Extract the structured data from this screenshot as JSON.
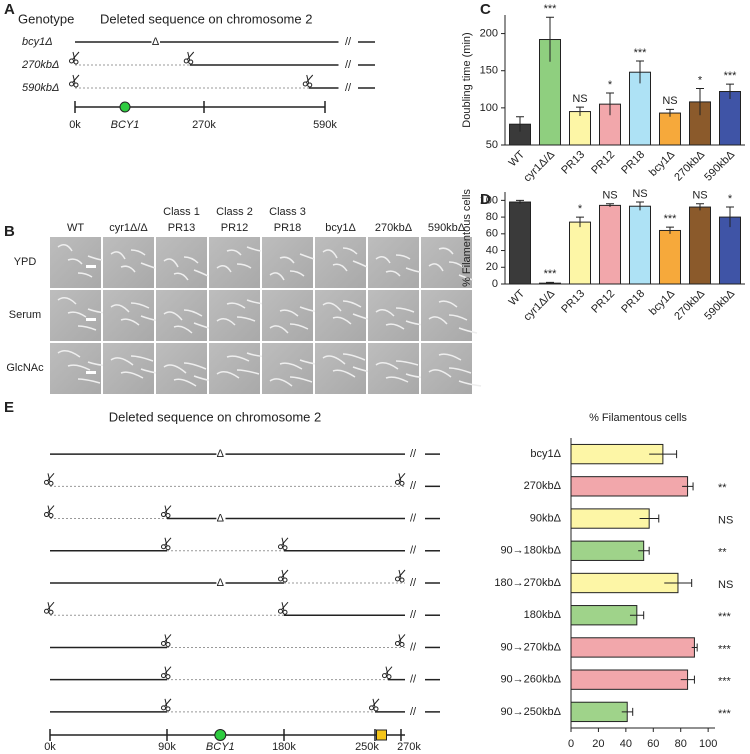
{
  "panel_labels": [
    "A",
    "B",
    "C",
    "D",
    "E"
  ],
  "panel_a": {
    "header_genotype": "Genotype",
    "header_sequence": "Deleted sequence on chromosome 2",
    "rows": [
      "bcy1Δ",
      "270kbΔ",
      "590kbΔ"
    ],
    "axis_labels": [
      "0k",
      "BCY1",
      "270k",
      "590k"
    ],
    "deletion_mark": "Δ",
    "break_mark": "//"
  },
  "panel_b": {
    "columns": [
      {
        "name": "WT"
      },
      {
        "name": "cyr1Δ/Δ"
      },
      {
        "class": "Class 1",
        "name": "PR13"
      },
      {
        "class": "Class 2",
        "name": "PR12"
      },
      {
        "class": "Class 3",
        "name": "PR18"
      },
      {
        "name": "bcy1Δ"
      },
      {
        "name": "270kbΔ"
      },
      {
        "name": "590kbΔ"
      }
    ],
    "rows": [
      "YPD",
      "Serum",
      "GlcNAc"
    ]
  },
  "panel_e": {
    "title": "Deleted sequence on chromosome 2",
    "axis_labels": [
      "0k",
      "90k",
      "BCY1",
      "180k",
      "250k",
      "270k"
    ],
    "deletion_mark": "Δ",
    "break_mark": "//"
  },
  "chart_data": [
    {
      "type": "bar",
      "y_label": "Doubling time (min)",
      "categories": [
        "WT",
        "cyr1Δ/Δ",
        "PR13",
        "PR12",
        "PR18",
        "bcy1Δ",
        "270kbΔ",
        "590kbΔ"
      ],
      "values": [
        78,
        192,
        95,
        105,
        148,
        93,
        108,
        122
      ],
      "errors": [
        10,
        30,
        6,
        15,
        15,
        5,
        18,
        10
      ],
      "colors": [
        "#3a3a3a",
        "#8fcf7f",
        "#fdf6a6",
        "#f2a7ab",
        "#aee2f5",
        "#f6a93b",
        "#8b5a2b",
        "#3f54a6"
      ],
      "annotations": [
        null,
        "***",
        "NS",
        "*",
        "***",
        "NS",
        "*",
        "***"
      ],
      "ylim": [
        50,
        225
      ],
      "yticks": [
        50,
        100,
        150,
        200
      ]
    },
    {
      "type": "bar",
      "y_label": "% Filamentous cells",
      "categories": [
        "WT",
        "cyr1Δ/Δ",
        "PR13",
        "PR12",
        "PR18",
        "bcy1Δ",
        "270kbΔ",
        "590kbΔ"
      ],
      "values": [
        98,
        1,
        74,
        94,
        93,
        64,
        92,
        80
      ],
      "errors": [
        2,
        1,
        6,
        2,
        5,
        4,
        4,
        12
      ],
      "colors": [
        "#3a3a3a",
        "#8fcf7f",
        "#fdf6a6",
        "#f2a7ab",
        "#aee2f5",
        "#f6a93b",
        "#8b5a2b",
        "#3f54a6"
      ],
      "annotations": [
        null,
        "***",
        "*",
        "NS",
        "NS",
        "***",
        "NS",
        "*"
      ],
      "ylim": [
        0,
        110
      ],
      "yticks": [
        0,
        20,
        40,
        60,
        80,
        100
      ]
    },
    {
      "type": "hbar",
      "title": "% Filamentous cells",
      "categories": [
        "bcy1Δ",
        "270kbΔ",
        "90kbΔ",
        "90→180kbΔ",
        "180→270kbΔ",
        "180kbΔ",
        "90→270kbΔ",
        "90→260kbΔ",
        "90→250kbΔ"
      ],
      "values": [
        67,
        85,
        57,
        53,
        78,
        48,
        90,
        85,
        41
      ],
      "errors": [
        10,
        4,
        7,
        4,
        10,
        5,
        2,
        5,
        4
      ],
      "colors": [
        "#fdf6a6",
        "#f2a7ab",
        "#fdf6a6",
        "#9fd38a",
        "#fdf6a6",
        "#9fd38a",
        "#f2a7ab",
        "#f2a7ab",
        "#9fd38a"
      ],
      "annotations": [
        null,
        "**",
        "NS",
        "**",
        "NS",
        "***",
        "***",
        "***",
        "***"
      ],
      "xlim": [
        0,
        105
      ],
      "xticks": [
        0,
        20,
        40,
        60,
        80,
        100
      ]
    }
  ]
}
